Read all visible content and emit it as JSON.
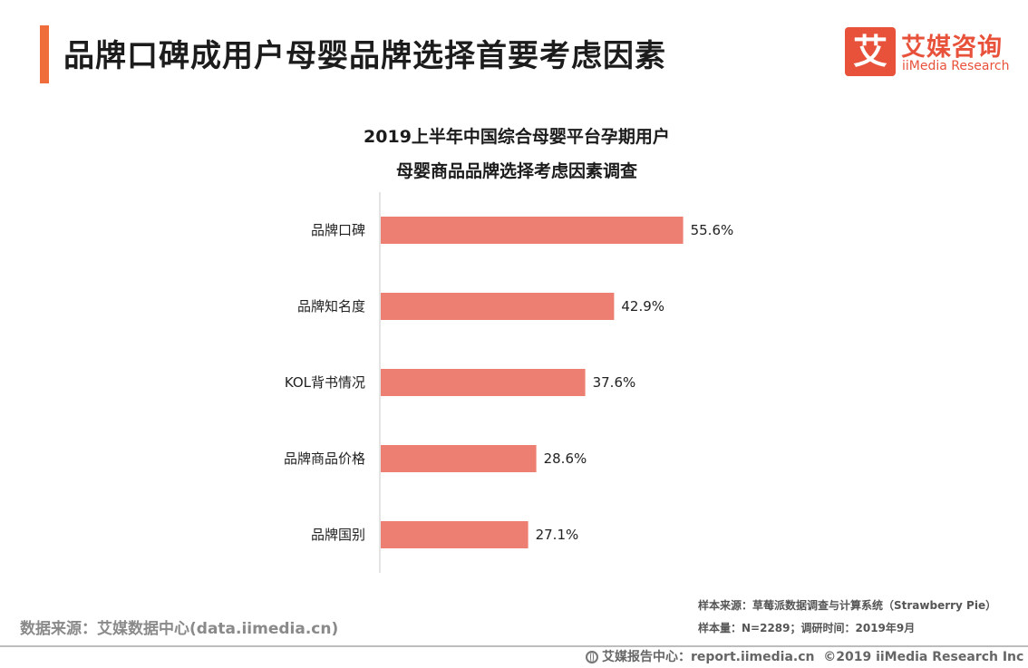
{
  "header": {
    "title": "品牌口碑成用户母婴品牌选择首要考虑因素",
    "accent_color": "#ef6d3a"
  },
  "logo": {
    "mark": "艾",
    "name_cn": "艾媒咨询",
    "name_en": "iiMedia Research",
    "color": "#e8523a"
  },
  "chart_data": {
    "type": "bar",
    "orientation": "horizontal",
    "title_line1": "2019上半年中国综合母婴平台孕期用户",
    "title_line2": "母婴商品品牌选择考虑因素调查",
    "categories": [
      "品牌口碑",
      "品牌知名度",
      "KOL背书情况",
      "品牌商品价格",
      "品牌国别"
    ],
    "values": [
      55.6,
      42.9,
      37.6,
      28.6,
      27.1
    ],
    "value_labels": [
      "55.6%",
      "42.9%",
      "37.6%",
      "28.6%",
      "27.1%"
    ],
    "unit": "%",
    "xlim": [
      0,
      60
    ],
    "bar_color": "#ec7f72",
    "grid": false,
    "legend": "none"
  },
  "footer": {
    "data_source": "数据来源：艾媒数据中心(data.iimedia.cn)",
    "sample_source": "样本来源：草莓派数据调查与计算系统（Strawberry Pie）",
    "sample_size": "样本量：N=2289；调研时间：2019年9月",
    "report_center": "艾媒报告中心：report.iimedia.cn",
    "copyright": "©2019  iiMedia Research  Inc"
  }
}
